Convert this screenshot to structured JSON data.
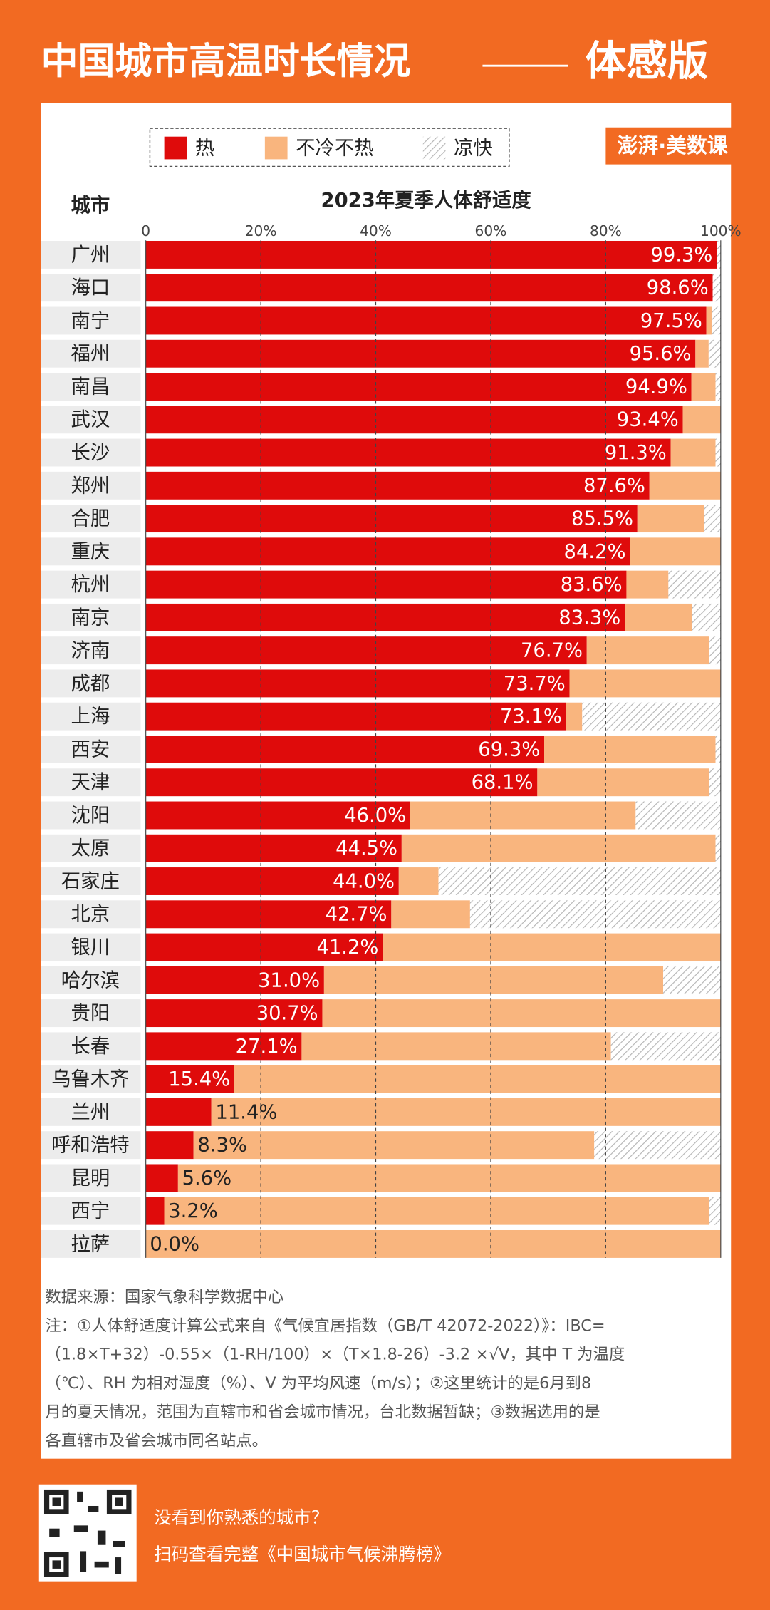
{
  "header": {
    "title": "中国城市高温时长情况",
    "subtitle": "体感版",
    "brand": "澎湃·美数课"
  },
  "chart_data": {
    "type": "stacked-barh",
    "title": "2023年夏季人体舒适度",
    "ylabel": "城市",
    "categories": [
      "广州",
      "海口",
      "南宁",
      "福州",
      "南昌",
      "武汉",
      "长沙",
      "郑州",
      "合肥",
      "重庆",
      "杭州",
      "南京",
      "济南",
      "成都",
      "上海",
      "西安",
      "天津",
      "沈阳",
      "太原",
      "石家庄",
      "北京",
      "银川",
      "哈尔滨",
      "贵阳",
      "长春",
      "乌鲁木齐",
      "兰州",
      "呼和浩特",
      "昆明",
      "西宁",
      "拉萨"
    ],
    "series": [
      {
        "name": "热",
        "color": "#df0b0b",
        "values": [
          99.3,
          98.6,
          97.5,
          95.6,
          94.9,
          93.4,
          91.3,
          87.6,
          85.5,
          84.2,
          83.6,
          83.3,
          76.7,
          73.7,
          73.1,
          69.3,
          68.1,
          46.0,
          44.5,
          44.0,
          42.7,
          41.2,
          31.0,
          30.7,
          27.1,
          15.4,
          11.4,
          8.3,
          5.6,
          3.2,
          0.0
        ],
        "value_labels": [
          "99.3%",
          "98.6%",
          "97.5%",
          "95.6%",
          "94.9%",
          "93.4%",
          "91.3%",
          "87.6%",
          "85.5%",
          "84.2%",
          "83.6%",
          "83.3%",
          "76.7%",
          "73.7%",
          "73.1%",
          "69.3%",
          "68.1%",
          "46.0%",
          "44.5%",
          "44.0%",
          "42.7%",
          "41.2%",
          "31.0%",
          "30.7%",
          "27.1%",
          "15.4%",
          "11.4%",
          "8.3%",
          "5.6%",
          "3.2%",
          "0.0%"
        ]
      },
      {
        "name": "不冷不热",
        "color": "#f9b57e",
        "values": [
          0,
          0,
          1.0,
          2.3,
          4.2,
          6.6,
          7.8,
          12.4,
          11.6,
          15.8,
          7.3,
          11.7,
          21.3,
          26.3,
          2.8,
          29.8,
          29.9,
          39.2,
          54.6,
          6.9,
          13.7,
          58.8,
          59.0,
          69.3,
          53.8,
          84.6,
          88.6,
          69.7,
          94.4,
          94.8,
          100.0
        ]
      },
      {
        "name": "凉快",
        "color": "#b5b5b5",
        "pattern": "hatch",
        "values": [
          0.7,
          1.4,
          1.5,
          2.1,
          0.9,
          0,
          0.9,
          0,
          2.9,
          0,
          9.1,
          5.0,
          2.0,
          0,
          24.1,
          0.9,
          2.0,
          14.8,
          0.9,
          49.1,
          43.6,
          0,
          10.0,
          0,
          19.1,
          0,
          0,
          22.0,
          0,
          2.0,
          0
        ]
      }
    ],
    "xlim": [
      0,
      100
    ],
    "xticks": [
      0,
      {
        "value": 20,
        "label": "20%"
      },
      {
        "value": 40,
        "label": "40%"
      },
      {
        "value": 60,
        "label": "60%"
      },
      {
        "value": 80,
        "label": "80%"
      },
      {
        "value": 100,
        "label": "100%"
      }
    ],
    "grid": true
  },
  "notes": [
    "数据来源：国家气象科学数据中心",
    "注：①人体舒适度计算公式来自《气候宜居指数（GB/T 42072-2022）》：IBC=",
    "（1.8×T+32）-0.55×（1-RH/100）×（T×1.8-26）-3.2 ×√V，其中 T 为温度",
    "（℃）、RH 为相对湿度（%）、V 为平均风速（m/s）；②这里统计的是6月到8",
    "月的夏天情况，范围为直辖市和省会城市情况，台北数据暂缺；③数据选用的是",
    "各直辖市及省会城市同名站点。"
  ],
  "footer": {
    "line1": "没看到你熟悉的城市？",
    "line2": "扫码查看完整《中国城市气候沸腾榜》"
  }
}
